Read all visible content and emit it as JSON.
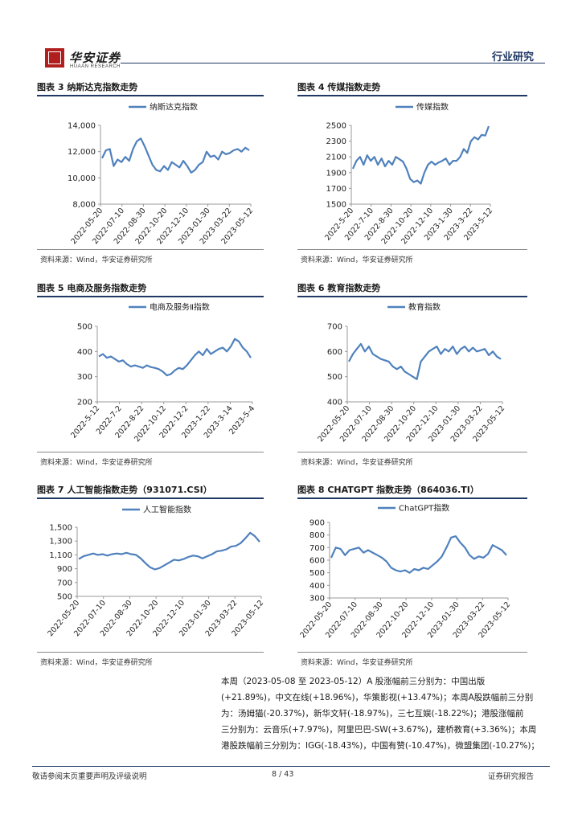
{
  "header": {
    "brand": "华安证券",
    "brand_en": "HUAAN RESEARCH",
    "section": "行业研究"
  },
  "figures": [
    {
      "title": "图表 3 纳斯达克指数走势",
      "source": "资料来源：Wind，华安证券研究所",
      "chart_data": {
        "type": "line",
        "title": "图表 3 纳斯达克指数走势",
        "series": [
          {
            "name": "纳斯达克指数",
            "values": [
              11500,
              12100,
              12200,
              10900,
              11400,
              11200,
              11600,
              11300,
              12200,
              12800,
              13000,
              12400,
              11700,
              11000,
              10600,
              10500,
              10900,
              10600,
              11200,
              11000,
              10800,
              11300,
              10900,
              10400,
              10600,
              11000,
              11200,
              12000,
              11600,
              11700,
              11400,
              12000,
              11800,
              11900,
              12100,
              12200,
              12000,
              12300,
              12100
            ]
          }
        ],
        "yticks": [
          "14,000",
          "12,000",
          "10,000",
          "8,000"
        ],
        "ylim": [
          8000,
          14000
        ],
        "xticks": [
          "2022-05-20",
          "2022-07-10",
          "2022-08-30",
          "2022-10-20",
          "2022-12-10",
          "2023-01-30",
          "2023-03-22",
          "2023-05-12"
        ]
      }
    },
    {
      "title": "图表 4 传媒指数走势",
      "source": "资料来源：Wind，华安证券研究所",
      "chart_data": {
        "type": "line",
        "title": "图表 4 传媒指数走势",
        "series": [
          {
            "name": "传媒指数",
            "values": [
              1950,
              2050,
              2100,
              2000,
              2120,
              2050,
              2100,
              2000,
              2080,
              1980,
              2050,
              2000,
              2100,
              2070,
              2040,
              1950,
              1820,
              1780,
              1800,
              1760,
              1900,
              2000,
              2040,
              2000,
              2030,
              2050,
              2080,
              2000,
              2050,
              2050,
              2100,
              2200,
              2150,
              2300,
              2350,
              2320,
              2380,
              2370,
              2490
            ]
          }
        ],
        "yticks": [
          "2500",
          "2300",
          "2100",
          "1900",
          "1700",
          "1500"
        ],
        "ylim": [
          1500,
          2500
        ],
        "xticks": [
          "2022-5-20",
          "2022-7-10",
          "2022-8-30",
          "2022-10-20",
          "2022-12-10",
          "2023-1-30",
          "2023-3-22",
          "2023-5-12"
        ]
      }
    },
    {
      "title": "图表 5 电商及服务指数走势",
      "source": "资料来源：Wind，华安证券研究所",
      "chart_data": {
        "type": "line",
        "title": "图表 5 电商及服务指数走势",
        "series": [
          {
            "name": "电商及服务Ⅱ指数",
            "values": [
              380,
              390,
              375,
              380,
              370,
              360,
              365,
              350,
              340,
              345,
              340,
              335,
              345,
              338,
              335,
              330,
              320,
              305,
              310,
              325,
              335,
              330,
              345,
              365,
              385,
              400,
              385,
              410,
              390,
              400,
              410,
              415,
              400,
              420,
              450,
              440,
              415,
              400,
              375
            ]
          }
        ],
        "yticks": [
          "500",
          "400",
          "300",
          "200"
        ],
        "ylim": [
          200,
          500
        ],
        "xticks": [
          "2022-5-12",
          "2022-7-2",
          "2022-8-22",
          "2022-10-12",
          "2022-12-2",
          "2023-1-22",
          "2023-3-14",
          "2023-5-4"
        ]
      }
    },
    {
      "title": "图表 6 教育指数走势",
      "source": "资料来源：Wind，华安证券研究所",
      "chart_data": {
        "type": "line",
        "title": "图表 6 教育指数走势",
        "series": [
          {
            "name": "教育指数",
            "values": [
              560,
              590,
              610,
              630,
              600,
              620,
              590,
              580,
              570,
              565,
              560,
              540,
              530,
              540,
              520,
              510,
              500,
              490,
              560,
              580,
              600,
              610,
              620,
              590,
              610,
              600,
              620,
              590,
              610,
              620,
              600,
              615,
              600,
              605,
              610,
              585,
              600,
              580,
              570
            ]
          }
        ],
        "yticks": [
          "700",
          "600",
          "500",
          "400"
        ],
        "ylim": [
          400,
          700
        ],
        "xticks": [
          "2022-05-20",
          "2022-07-10",
          "2022-08-30",
          "2022-10-20",
          "2022-12-10",
          "2023-01-30",
          "2023-03-22",
          "2023-05-12"
        ]
      }
    },
    {
      "title": "图表 7 人工智能指数走势（931071.CSI）",
      "source": "资料来源：Wind，华安证券研究所",
      "chart_data": {
        "type": "line",
        "title": "图表 7 人工智能指数走势（931071.CSI）",
        "series": [
          {
            "name": "人工智能指数",
            "values": [
              1040,
              1080,
              1100,
              1120,
              1100,
              1110,
              1090,
              1110,
              1120,
              1110,
              1130,
              1110,
              1100,
              1050,
              980,
              920,
              890,
              910,
              950,
              990,
              1030,
              1020,
              1040,
              1070,
              1090,
              1080,
              1050,
              1080,
              1110,
              1150,
              1160,
              1180,
              1220,
              1230,
              1270,
              1340,
              1420,
              1370,
              1290
            ]
          }
        ],
        "yticks": [
          "1,500",
          "1,300",
          "1,100",
          "900",
          "700",
          "500"
        ],
        "ylim": [
          500,
          1500
        ],
        "xticks": [
          "2022-05-20",
          "2022-07-10",
          "2022-08-30",
          "2022-10-20",
          "2022-12-10",
          "2023-01-30",
          "2023-03-22",
          "2023-05-12"
        ]
      }
    },
    {
      "title": "图表 8 CHATGPT 指数走势（864036.TI）",
      "source": "资料来源：Wind，华安证券研究所",
      "chart_data": {
        "type": "line",
        "title": "图表 8 CHATGPT 指数走势（864036.TI）",
        "series": [
          {
            "name": "ChatGPT指数",
            "values": [
              620,
              700,
              690,
              640,
              680,
              690,
              700,
              660,
              680,
              660,
              640,
              620,
              590,
              540,
              520,
              510,
              520,
              500,
              530,
              520,
              540,
              530,
              560,
              590,
              630,
              700,
              780,
              790,
              740,
              700,
              640,
              610,
              630,
              620,
              650,
              720,
              700,
              680,
              640
            ]
          }
        ],
        "yticks": [
          "900",
          "800",
          "700",
          "600",
          "500",
          "400",
          "300"
        ],
        "ylim": [
          300,
          900
        ],
        "xticks": [
          "2022-05-20",
          "2022-07-10",
          "2022-08-30",
          "2022-10-20",
          "2022-12-10",
          "2023-01-30",
          "2023-03-22",
          "2023-05-12"
        ]
      }
    }
  ],
  "body_text": [
    "本周（2023-05-08 至 2023-05-12）A 股涨幅前三分别为：中国出版",
    "(+21.89%)，中文在线(+18.96%)，华策影视(+13.47%)；本周A股跌幅前三分别",
    "为：汤姆猫(-20.37%)，新华文轩(-18.97%)，三七互娱(-18.22%)；港股涨幅前",
    "三分别为：云音乐(+7.97%)，阿里巴巴-SW(+3.67%)，建桥教育(+3.36%)；本周",
    "港股跌幅前三分别为：IGG(-18.43%)，中国有赞(-10.47%)，微盟集团(-10.27%)；"
  ],
  "footer": {
    "left": "敬请参阅末页重要声明及评级说明",
    "page": "8 / 43",
    "right": "证券研究报告"
  },
  "colors": {
    "line": "#4f81bd",
    "brand_red": "#b01e1e",
    "rule": "#1f3864"
  }
}
